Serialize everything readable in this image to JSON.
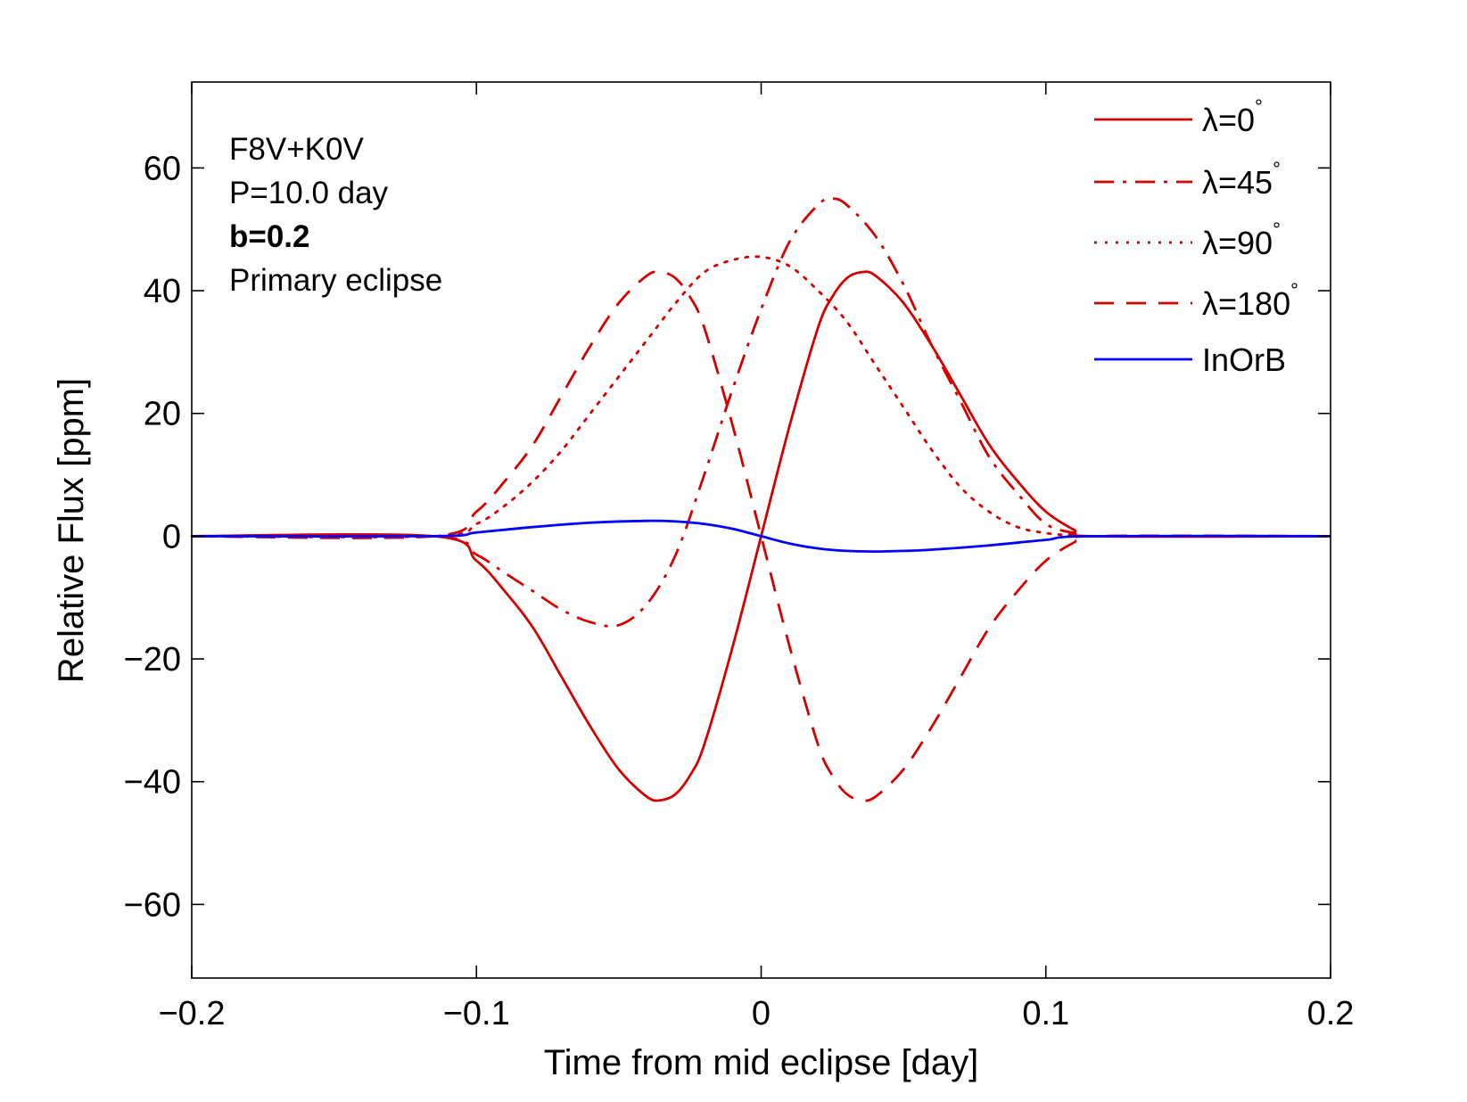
{
  "chart_data": {
    "type": "line",
    "xlabel": "Time from mid eclipse [day]",
    "ylabel": "Relative Flux [ppm]",
    "xlim": [
      -0.2,
      0.2
    ],
    "ylim": [
      -72,
      74
    ],
    "xticks": [
      -0.2,
      -0.1,
      0,
      0.1,
      0.2
    ],
    "xtick_labels": [
      "−0.2",
      "−0.1",
      "0",
      "0.1",
      "0.2"
    ],
    "yticks": [
      -60,
      -40,
      -20,
      0,
      20,
      40,
      60
    ],
    "ytick_labels": [
      "−60",
      "−40",
      "−20",
      "0",
      "20",
      "40",
      "60"
    ],
    "grid": false,
    "legend_position": "top-right",
    "annotation_lines": [
      {
        "text": "F8V+K0V",
        "bold": false
      },
      {
        "text": "P=10.0 day",
        "bold": false
      },
      {
        "text": "b=0.2",
        "bold": true
      },
      {
        "text": "Primary eclipse",
        "bold": false
      }
    ],
    "series": [
      {
        "name": "λ=0",
        "degree": "°",
        "color": "#d40000",
        "style": "solid",
        "x": [
          -0.2,
          -0.115,
          -0.1,
          -0.09,
          -0.08,
          -0.07,
          -0.06,
          -0.05,
          -0.04,
          -0.035,
          -0.03,
          -0.025,
          -0.02,
          -0.01,
          0,
          0.01,
          0.02,
          0.025,
          0.03,
          0.035,
          0.04,
          0.05,
          0.06,
          0.07,
          0.08,
          0.09,
          0.1,
          0.11,
          0.116,
          0.2
        ],
        "y": [
          0,
          0,
          -4,
          -9,
          -15,
          -23,
          -31,
          -38,
          -42.5,
          -43,
          -42,
          -39,
          -34,
          -18,
          0,
          18,
          34,
          39,
          42,
          43,
          42.5,
          38,
          31,
          23,
          15,
          9,
          4,
          1,
          0,
          0
        ]
      },
      {
        "name": "λ=45",
        "degree": "°",
        "color": "#d40000",
        "style": "dashdot",
        "x": [
          -0.2,
          -0.115,
          -0.1,
          -0.09,
          -0.08,
          -0.07,
          -0.06,
          -0.05,
          -0.04,
          -0.03,
          -0.02,
          -0.01,
          0,
          0.01,
          0.02,
          0.025,
          0.03,
          0.04,
          0.05,
          0.06,
          0.07,
          0.08,
          0.09,
          0.1,
          0.11,
          0.116,
          0.2
        ],
        "y": [
          0,
          0,
          -3,
          -6,
          -9,
          -12,
          -14,
          -14.5,
          -11,
          -3,
          10,
          24,
          37,
          48,
          54,
          55,
          54,
          49,
          41,
          31,
          22,
          13,
          7,
          2,
          0.5,
          0,
          0
        ]
      },
      {
        "name": "λ=90",
        "degree": "°",
        "color": "#d40000",
        "style": "dotted",
        "x": [
          -0.2,
          -0.115,
          -0.1,
          -0.09,
          -0.08,
          -0.07,
          -0.06,
          -0.05,
          -0.04,
          -0.03,
          -0.02,
          -0.01,
          0,
          0.01,
          0.02,
          0.03,
          0.04,
          0.05,
          0.06,
          0.07,
          0.08,
          0.09,
          0.1,
          0.11,
          0.116,
          0.2
        ],
        "y": [
          0,
          0,
          2,
          5,
          9,
          14,
          20,
          26,
          32,
          38,
          43,
          45,
          45.5,
          44,
          40,
          35,
          28,
          21,
          14,
          8,
          4,
          1.5,
          0.5,
          0.1,
          0,
          0
        ]
      },
      {
        "name": "λ=180",
        "degree": "°",
        "color": "#d40000",
        "style": "dashed",
        "x": [
          -0.2,
          -0.115,
          -0.1,
          -0.09,
          -0.08,
          -0.07,
          -0.06,
          -0.05,
          -0.04,
          -0.035,
          -0.03,
          -0.025,
          -0.02,
          -0.01,
          0,
          0.01,
          0.02,
          0.025,
          0.03,
          0.035,
          0.04,
          0.05,
          0.06,
          0.07,
          0.08,
          0.09,
          0.1,
          0.11,
          0.116,
          0.2
        ],
        "y": [
          0,
          0,
          4,
          9,
          15,
          23,
          31,
          38,
          42.5,
          43,
          42,
          39,
          34,
          18,
          0,
          -18,
          -34,
          -39,
          -42,
          -43,
          -42.5,
          -38,
          -31,
          -23,
          -15,
          -9,
          -4,
          -1,
          0,
          0
        ]
      },
      {
        "name": "InOrB",
        "degree": "",
        "color": "#0000ff",
        "style": "solid",
        "x": [
          -0.2,
          -0.115,
          -0.1,
          -0.08,
          -0.06,
          -0.04,
          -0.03,
          -0.02,
          -0.01,
          0,
          0.01,
          0.02,
          0.03,
          0.04,
          0.05,
          0.06,
          0.08,
          0.1,
          0.116,
          0.2
        ],
        "y": [
          0,
          0,
          0.6,
          1.5,
          2.2,
          2.5,
          2.4,
          2.0,
          1.2,
          0,
          -1.2,
          -2.0,
          -2.4,
          -2.5,
          -2.4,
          -2.2,
          -1.5,
          -0.6,
          0,
          0
        ]
      }
    ]
  }
}
